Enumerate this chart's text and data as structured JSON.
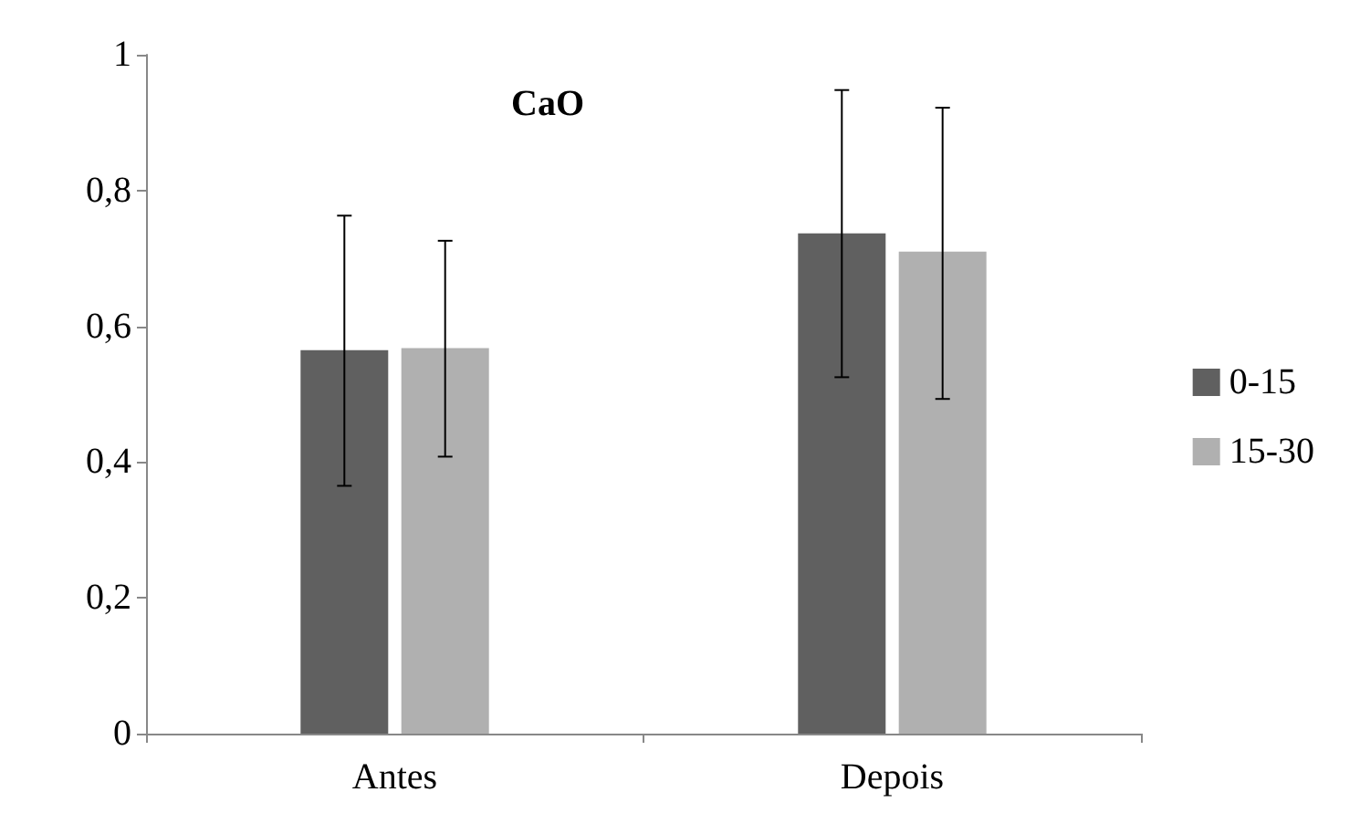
{
  "chart_data": {
    "type": "bar",
    "title": "CaO",
    "categories": [
      "Antes",
      "Depois"
    ],
    "series": [
      {
        "name": "0-15",
        "color": "#606060",
        "values": [
          0.565,
          0.737
        ],
        "errors": [
          [
            0.365,
            0.763
          ],
          [
            0.525,
            0.948
          ]
        ]
      },
      {
        "name": "15-30",
        "color": "#b0b0b0",
        "values": [
          0.568,
          0.71
        ],
        "errors": [
          [
            0.408,
            0.726
          ],
          [
            0.493,
            0.922
          ]
        ]
      }
    ],
    "ylim": [
      0,
      1
    ],
    "yticks": [
      {
        "value": 0,
        "label": "0"
      },
      {
        "value": 0.2,
        "label": "0,2"
      },
      {
        "value": 0.4,
        "label": "0,4"
      },
      {
        "value": 0.6,
        "label": "0,6"
      },
      {
        "value": 0.8,
        "label": "0,8"
      },
      {
        "value": 1,
        "label": "1"
      }
    ],
    "grid": false,
    "legend": "right"
  }
}
